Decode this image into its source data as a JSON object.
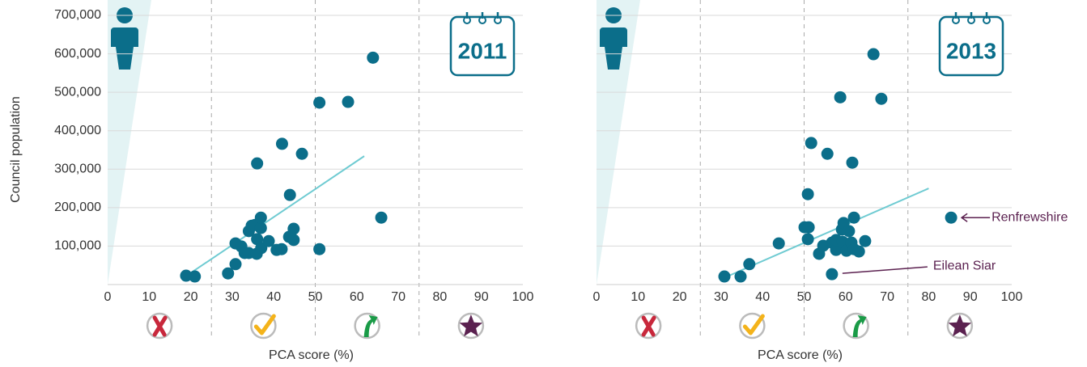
{
  "chart_data": [
    {
      "type": "scatter",
      "year": "2011",
      "x_label": "PCA score (%)",
      "y_label": "Council population",
      "color": "#0b6e8a",
      "trend_color": "#6fcbd2",
      "xlim": [
        0,
        100
      ],
      "xticks": [
        0,
        10,
        20,
        30,
        40,
        50,
        60,
        70,
        80,
        90,
        100
      ],
      "ylim": [
        0,
        700000
      ],
      "yticks": [
        {
          "value": 100000,
          "label": "100,000"
        },
        {
          "value": 200000,
          "label": "200,000"
        },
        {
          "value": 300000,
          "label": "300,000"
        },
        {
          "value": 400000,
          "label": "400,000"
        },
        {
          "value": 500000,
          "label": "500,000"
        },
        {
          "value": 600000,
          "label": "600,000"
        },
        {
          "value": 700000,
          "label": "700,000"
        }
      ],
      "zones": [
        25,
        50,
        75
      ],
      "grid": true,
      "x": [
        18.9,
        21,
        29,
        30.8,
        30.8,
        32.2,
        33,
        34,
        34,
        34.7,
        35.5,
        35.9,
        36,
        36,
        36.9,
        36.9,
        37,
        38.8,
        40.7,
        41.9,
        42,
        43.7,
        43.9,
        44.8,
        44.8,
        46.8,
        51,
        51,
        57.9,
        63.9,
        65.9
      ],
      "values": [
        23000,
        21000,
        29000,
        53000,
        107000,
        99000,
        82000,
        82000,
        139000,
        153000,
        155000,
        80000,
        315000,
        118000,
        147000,
        174000,
        95000,
        113000,
        90000,
        92000,
        366000,
        124000,
        233000,
        145000,
        116000,
        340000,
        473000,
        92000,
        475000,
        590000,
        174000
      ],
      "trendline": {
        "x": [
          19.3,
          61.8
        ],
        "y": [
          25000,
          334000
        ]
      },
      "annotations": []
    },
    {
      "type": "scatter",
      "year": "2013",
      "x_label": "PCA score (%)",
      "color": "#0b6e8a",
      "trend_color": "#6fcbd2",
      "xlim": [
        0,
        100
      ],
      "xticks": [
        0,
        10,
        20,
        30,
        40,
        50,
        60,
        70,
        80,
        90,
        100
      ],
      "ylim": [
        0,
        700000
      ],
      "yticks": [
        {
          "value": 100000,
          "label": "100,000"
        },
        {
          "value": 200000,
          "label": "200,000"
        },
        {
          "value": 300000,
          "label": "300,000"
        },
        {
          "value": 400000,
          "label": "400,000"
        },
        {
          "value": 500000,
          "label": "500,000"
        },
        {
          "value": 600000,
          "label": "600,000"
        },
        {
          "value": 700000,
          "label": "700,000"
        }
      ],
      "zones": [
        25,
        50,
        75
      ],
      "grid": true,
      "x": [
        30.8,
        34.7,
        36.8,
        43.9,
        51.7,
        50.9,
        50.1,
        51.1,
        50.9,
        53.6,
        54.6,
        55.6,
        56.7,
        56.7,
        57.7,
        57.7,
        58.7,
        59.1,
        59.3,
        59.5,
        60.2,
        60.8,
        61.4,
        61.6,
        62,
        62,
        63.2,
        64.7,
        66.7,
        68.6,
        85.4
      ],
      "values": [
        21000,
        21000,
        53000,
        107000,
        368000,
        235000,
        149000,
        149000,
        118000,
        80000,
        101000,
        340000,
        109000,
        27000,
        90000,
        116000,
        487000,
        143000,
        111000,
        160000,
        88000,
        139000,
        109000,
        317000,
        174000,
        92000,
        86000,
        113000,
        599000,
        483000,
        174000
      ],
      "trendline": {
        "x": [
          30.2,
          80
        ],
        "y": [
          15000,
          250000
        ]
      },
      "annotations": [
        {
          "text": "Renfrewshire",
          "x": 85.4,
          "y": 174000
        },
        {
          "text": "Eilean Siar",
          "x": 56.7,
          "y": 27000
        }
      ]
    }
  ]
}
